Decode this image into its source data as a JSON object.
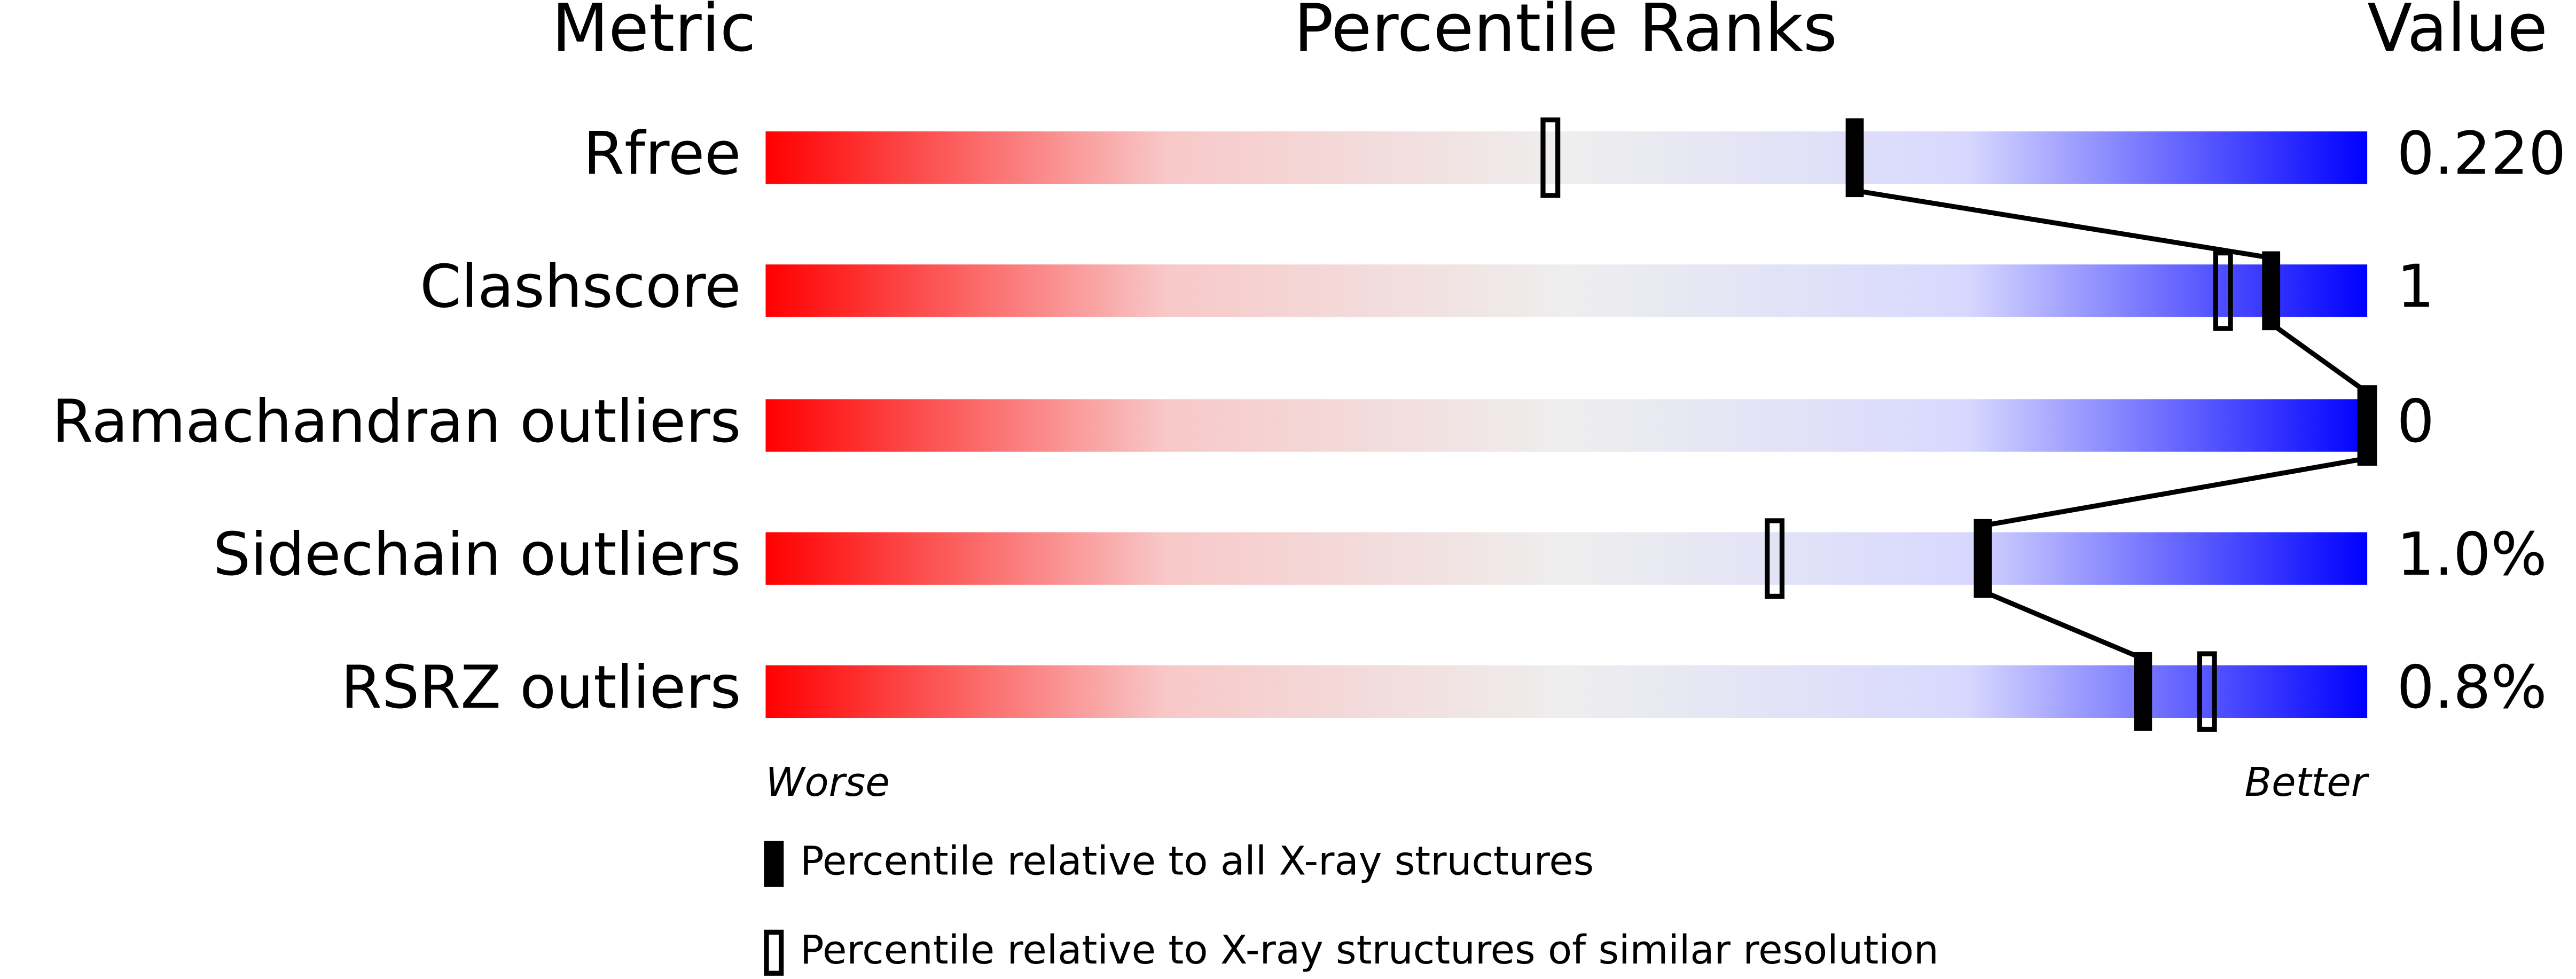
{
  "chart_data": {
    "type": "percentile-slider",
    "headers": {
      "metric": "Metric",
      "ranks": "Percentile Ranks",
      "value": "Value"
    },
    "categories": [
      "Rfree",
      "Clashscore",
      "Ramachandran outliers",
      "Sidechain outliers",
      "RSRZ outliers"
    ],
    "metric_values": [
      "0.220",
      "1",
      "0",
      "1.0%",
      "0.8%"
    ],
    "series": [
      {
        "name": "Percentile relative to all X-ray structures",
        "color": "#000000",
        "style": "filled",
        "values": [
          68,
          94,
          100,
          76,
          86
        ]
      },
      {
        "name": "Percentile relative to X-ray structures of similar resolution",
        "color": "#000000",
        "style": "open",
        "values": [
          49,
          91,
          100,
          63,
          90
        ]
      }
    ],
    "xlim": [
      0,
      100
    ],
    "axis_labels": {
      "low": "Worse",
      "high": "Better"
    },
    "colormap": [
      "#ff0000",
      "#f8c8c8",
      "#eeeeee",
      "#d8d8ff",
      "#0000ff"
    ]
  }
}
